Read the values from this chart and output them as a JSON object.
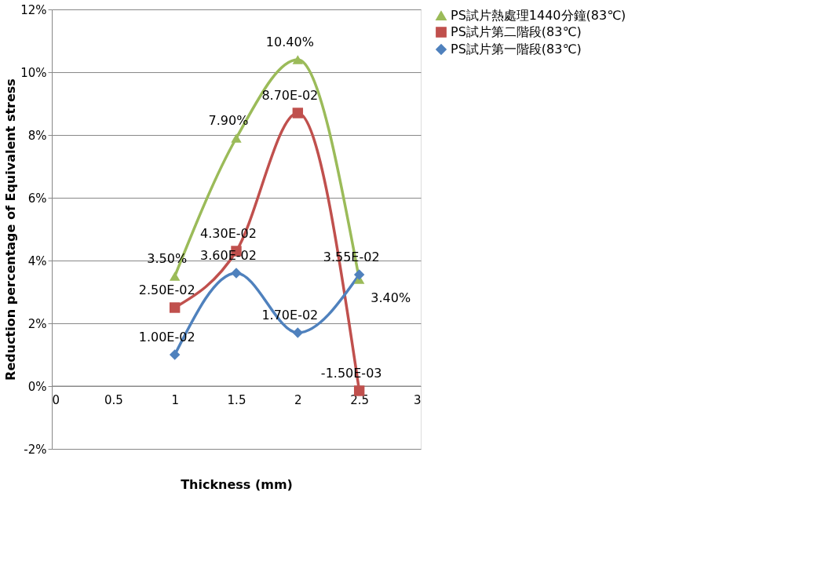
{
  "chart_data": {
    "type": "line",
    "xlabel": "Thickness (mm)",
    "ylabel": "Reduction percentage of Equivalent stress",
    "x": [
      1,
      1.5,
      2,
      2.5
    ],
    "xlim": [
      0,
      3
    ],
    "xticks": [
      0,
      0.5,
      1,
      1.5,
      2,
      2.5,
      3
    ],
    "ylim": [
      -0.02,
      0.12
    ],
    "yticks": [
      {
        "value": -0.02,
        "label": "-2%"
      },
      {
        "value": 0,
        "label": "0%"
      },
      {
        "value": 0.02,
        "label": "2%"
      },
      {
        "value": 0.04,
        "label": "4%"
      },
      {
        "value": 0.06,
        "label": "6%"
      },
      {
        "value": 0.08,
        "label": "8%"
      },
      {
        "value": 0.1,
        "label": "10%"
      },
      {
        "value": 0.12,
        "label": "12%"
      }
    ],
    "grid": "y",
    "legend": "right",
    "series": [
      {
        "name": "PS試片熱處理1440分鐘(83℃)",
        "color": "#9bbb59",
        "marker": "triangle",
        "values": [
          0.035,
          0.079,
          0.104,
          0.034
        ],
        "value_labels": [
          "3.50%",
          "7.90%",
          "10.40%",
          "3.40%"
        ]
      },
      {
        "name": "PS試片第二階段(83℃)",
        "color": "#c0504d",
        "marker": "square",
        "values": [
          0.025,
          0.043,
          0.087,
          -0.0015
        ],
        "value_labels": [
          "2.50E-02",
          "4.30E-02",
          "8.70E-02",
          "-1.50E-03"
        ]
      },
      {
        "name": "PS試片第一階段(83℃)",
        "color": "#4f81bd",
        "marker": "diamond",
        "values": [
          0.01,
          0.036,
          0.017,
          0.0355
        ],
        "value_labels": [
          "1.00E-02",
          "3.60E-02",
          "1.70E-02",
          "3.55E-02"
        ]
      }
    ]
  }
}
